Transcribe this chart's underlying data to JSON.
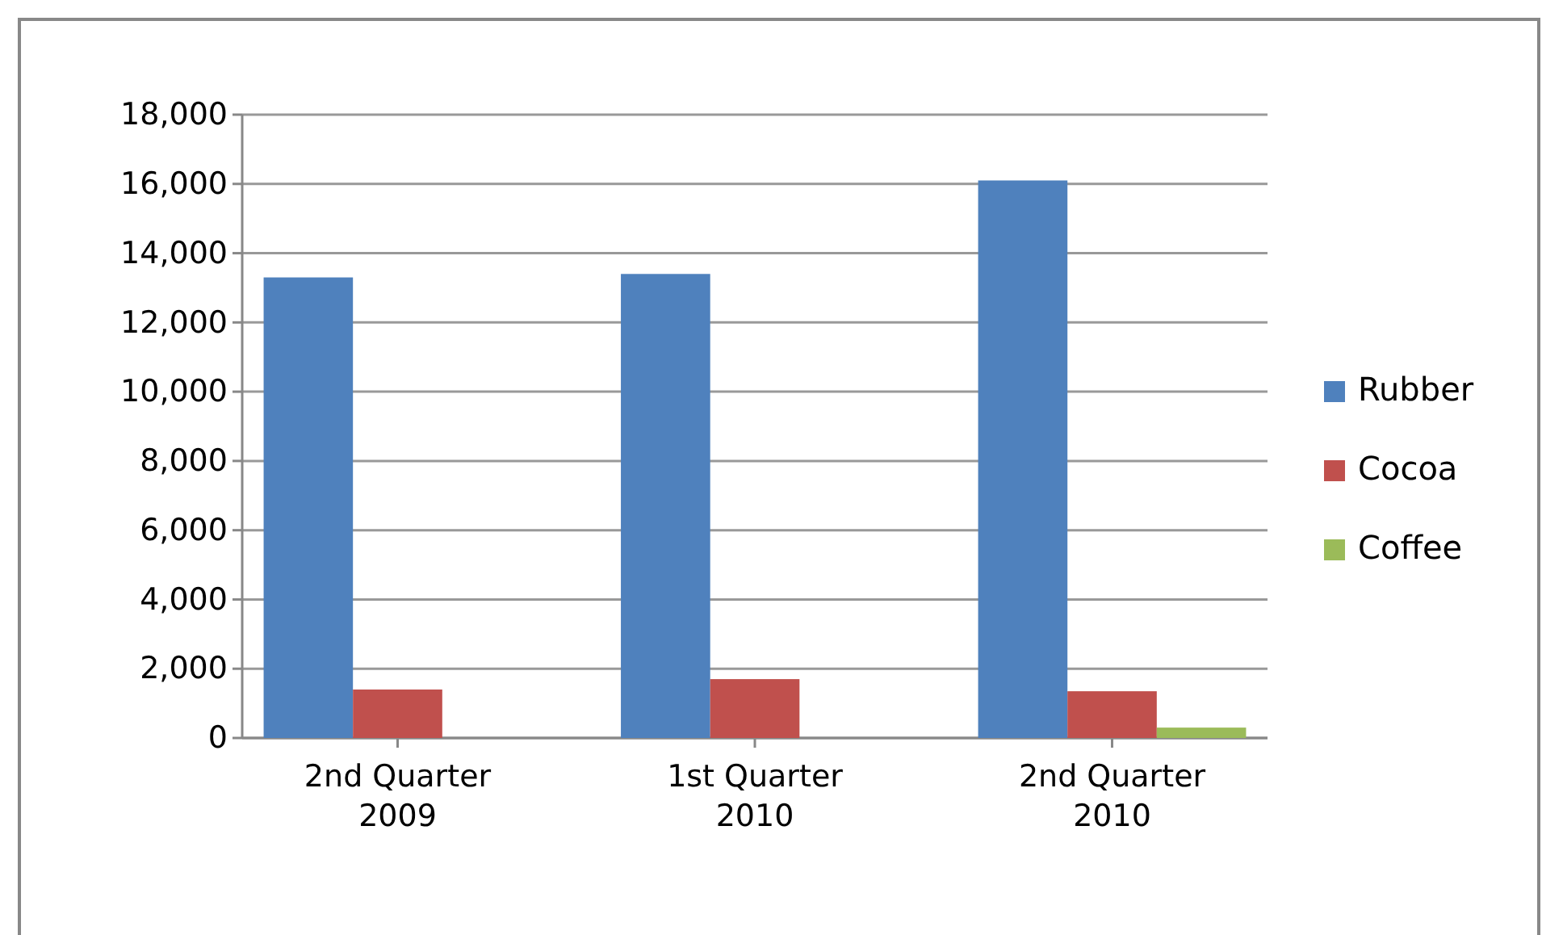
{
  "chart_data": {
    "type": "bar",
    "categories": [
      "2nd Quarter\n2009",
      "1st Quarter\n2010",
      "2nd Quarter\n2010"
    ],
    "series": [
      {
        "name": "Rubber",
        "color": "#4f81bd",
        "values": [
          13300,
          13400,
          16100
        ]
      },
      {
        "name": "Cocoa",
        "color": "#c0504d",
        "values": [
          1400,
          1700,
          1350
        ]
      },
      {
        "name": "Coffee",
        "color": "#9bbb59",
        "values": [
          null,
          null,
          300
        ]
      }
    ],
    "ylim": [
      0,
      18000
    ],
    "yticks": [
      {
        "value": 0,
        "label": "0"
      },
      {
        "value": 2000,
        "label": "2,000"
      },
      {
        "value": 4000,
        "label": "4,000"
      },
      {
        "value": 6000,
        "label": "6,000"
      },
      {
        "value": 8000,
        "label": "8,000"
      },
      {
        "value": 10000,
        "label": "10,000"
      },
      {
        "value": 12000,
        "label": "12,000"
      },
      {
        "value": 14000,
        "label": "14,000"
      },
      {
        "value": 16000,
        "label": "16,000"
      },
      {
        "value": 18000,
        "label": "18,000"
      }
    ],
    "grid": "y",
    "legend": "right"
  }
}
